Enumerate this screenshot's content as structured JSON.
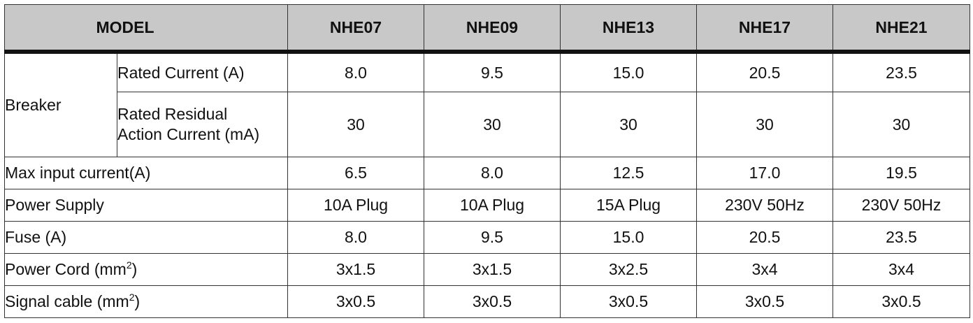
{
  "header": {
    "model_label": "MODEL",
    "models": [
      "NHE07",
      "NHE09",
      "NHE13",
      "NHE17",
      "NHE21"
    ]
  },
  "breaker": {
    "label": "Breaker",
    "rated_current": {
      "label": "Rated Current (A)",
      "values": [
        "8.0",
        "9.5",
        "15.0",
        "20.5",
        "23.5"
      ]
    },
    "rated_residual": {
      "label_line1": "Rated Residual",
      "label_line2": "Action Current (mA)",
      "values": [
        "30",
        "30",
        "30",
        "30",
        "30"
      ]
    }
  },
  "rows": {
    "max_input": {
      "label": "Max input current(A)",
      "values": [
        "6.5",
        "8.0",
        "12.5",
        "17.0",
        "19.5"
      ]
    },
    "power_supply": {
      "label": "Power Supply",
      "values": [
        "10A Plug",
        "10A Plug",
        "15A Plug",
        "230V 50Hz",
        "230V 50Hz"
      ]
    },
    "fuse": {
      "label": "Fuse (A)",
      "values": [
        "8.0",
        "9.5",
        "15.0",
        "20.5",
        "23.5"
      ]
    },
    "power_cord": {
      "label": "Power Cord (mm",
      "label_sup": "2",
      "label_end": ")",
      "values": [
        "3x1.5",
        "3x1.5",
        "3x2.5",
        "3x4",
        "3x4"
      ]
    },
    "signal_cable": {
      "label": "Signal cable (mm",
      "label_sup": "2",
      "label_end": ")",
      "values": [
        "3x0.5",
        "3x0.5",
        "3x0.5",
        "3x0.5",
        "3x0.5"
      ]
    }
  }
}
